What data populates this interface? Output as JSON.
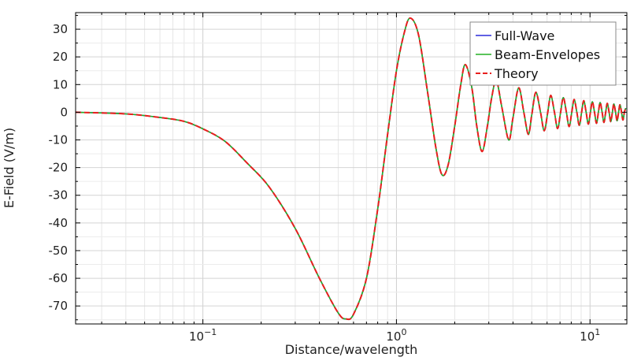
{
  "chart_data": {
    "type": "line",
    "title": "",
    "xlabel": "Distance/wavelength",
    "ylabel": "E-Field (V/m)",
    "xscale": "log",
    "xlim": [
      0.022,
      15.5
    ],
    "ylim": [
      -76.5,
      36
    ],
    "x_ticks": [
      {
        "value": 0.1,
        "base": "10",
        "exp": "−1"
      },
      {
        "value": 1,
        "base": "10",
        "exp": "0"
      },
      {
        "value": 10,
        "base": "10",
        "exp": "1"
      }
    ],
    "y_ticks": [
      {
        "value": 30,
        "label": "30"
      },
      {
        "value": 20,
        "label": "20"
      },
      {
        "value": 10,
        "label": "10"
      },
      {
        "value": 0,
        "label": "0"
      },
      {
        "value": -10,
        "label": "-10"
      },
      {
        "value": -20,
        "label": "-20"
      },
      {
        "value": -30,
        "label": "-30"
      },
      {
        "value": -40,
        "label": "-40"
      },
      {
        "value": -50,
        "label": "-50"
      },
      {
        "value": -60,
        "label": "-60"
      },
      {
        "value": -70,
        "label": "-70"
      }
    ],
    "grid": true,
    "legend_position": "top-right",
    "series": [
      {
        "name": "Full-Wave",
        "color": "#2b2bdc",
        "style": "solid",
        "width": 1.6
      },
      {
        "name": "Beam-Envelopes",
        "color": "#23b023",
        "style": "solid",
        "width": 1.6
      },
      {
        "name": "Theory",
        "color": "#e8201e",
        "style": "dashed",
        "width": 2.0
      }
    ],
    "curve_points": [
      [
        0.022,
        0.0
      ],
      [
        0.04,
        -0.6
      ],
      [
        0.06,
        -1.9
      ],
      [
        0.08,
        -3.3
      ],
      [
        0.1,
        -6.0
      ],
      [
        0.13,
        -10.5
      ],
      [
        0.17,
        -18.5
      ],
      [
        0.22,
        -27.0
      ],
      [
        0.3,
        -42.0
      ],
      [
        0.4,
        -60.0
      ],
      [
        0.5,
        -72.5
      ],
      [
        0.55,
        -74.7
      ],
      [
        0.6,
        -73.0
      ],
      [
        0.7,
        -60.0
      ],
      [
        0.8,
        -35.0
      ],
      [
        0.9,
        -8.0
      ],
      [
        1.0,
        15.0
      ],
      [
        1.1,
        29.0
      ],
      [
        1.18,
        34.0
      ],
      [
        1.3,
        28.0
      ],
      [
        1.45,
        7.0
      ],
      [
        1.6,
        -13.0
      ],
      [
        1.72,
        -22.6
      ],
      [
        1.85,
        -19.0
      ],
      [
        2.0,
        -5.0
      ],
      [
        2.15,
        10.0
      ],
      [
        2.27,
        17.2
      ],
      [
        2.45,
        9.0
      ],
      [
        2.6,
        -5.0
      ],
      [
        2.77,
        -14.2
      ],
      [
        2.95,
        -5.0
      ],
      [
        3.1,
        5.0
      ],
      [
        3.28,
        11.5
      ],
      [
        3.5,
        2.0
      ],
      [
        3.8,
        -10.0
      ],
      [
        4.0,
        -2.0
      ],
      [
        4.28,
        8.8
      ],
      [
        4.55,
        0.0
      ],
      [
        4.8,
        -8.0
      ],
      [
        5.0,
        -1.0
      ],
      [
        5.25,
        7.2
      ],
      [
        5.55,
        0.0
      ],
      [
        5.8,
        -6.7
      ],
      [
        6.05,
        0.0
      ],
      [
        6.27,
        6.1
      ],
      [
        6.55,
        0.0
      ],
      [
        6.8,
        -5.9
      ],
      [
        7.05,
        0.0
      ],
      [
        7.28,
        5.3
      ],
      [
        7.55,
        0.0
      ],
      [
        7.8,
        -5.2
      ],
      [
        8.05,
        0.0
      ],
      [
        8.28,
        4.6
      ],
      [
        8.55,
        0.0
      ],
      [
        8.8,
        -4.7
      ],
      [
        9.05,
        0.0
      ],
      [
        9.28,
        4.2
      ],
      [
        9.55,
        0.0
      ],
      [
        9.8,
        -4.3
      ],
      [
        10.05,
        0.0
      ],
      [
        10.28,
        3.8
      ],
      [
        10.55,
        0.0
      ],
      [
        10.8,
        -4.0
      ],
      [
        11.05,
        0.0
      ],
      [
        11.28,
        3.5
      ],
      [
        11.55,
        0.0
      ],
      [
        11.8,
        -3.7
      ],
      [
        12.05,
        0.0
      ],
      [
        12.28,
        3.2
      ],
      [
        12.55,
        0.0
      ],
      [
        12.8,
        -3.4
      ],
      [
        13.05,
        0.0
      ],
      [
        13.28,
        3.0
      ],
      [
        13.55,
        0.0
      ],
      [
        13.8,
        -3.1
      ],
      [
        14.05,
        0.0
      ],
      [
        14.28,
        2.7
      ],
      [
        14.55,
        0.0
      ],
      [
        14.8,
        -2.8
      ],
      [
        15.05,
        0.0
      ],
      [
        15.3,
        1.5
      ]
    ]
  }
}
